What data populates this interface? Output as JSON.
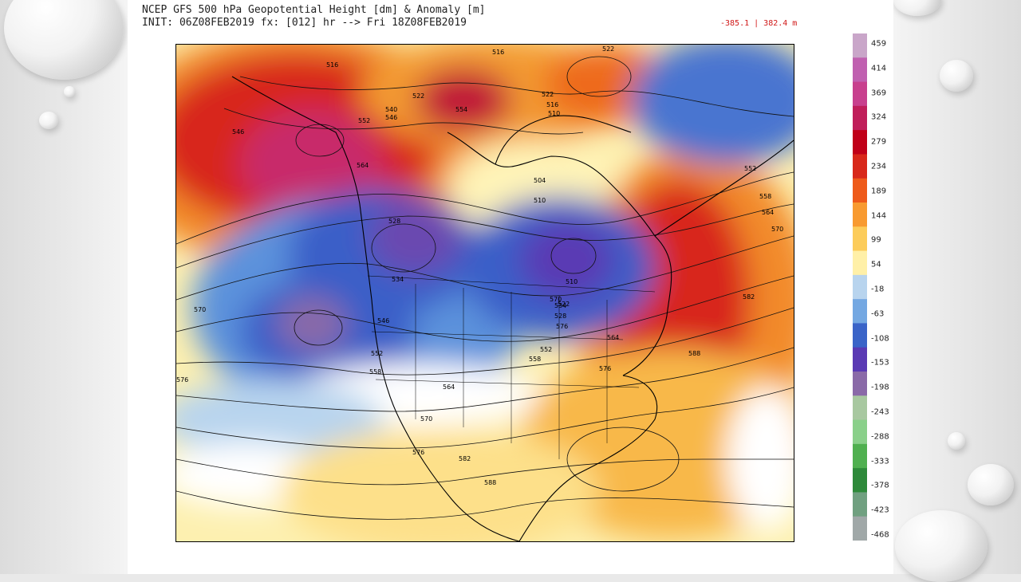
{
  "header": {
    "title_line1": "NCEP GFS 500 hPa Geopotential Height [dm] & Anomaly [m]",
    "title_line2": "INIT: 06Z08FEB2019 fx: [012] hr --> Fri 18Z08FEB2019",
    "minmax": "-385.1 | 382.4 m"
  },
  "colorbar": {
    "ticks": [
      "459",
      "414",
      "369",
      "324",
      "279",
      "234",
      "189",
      "144",
      "99",
      "54",
      "-18",
      "-63",
      "-108",
      "-153",
      "-198",
      "-243",
      "-288",
      "-333",
      "-378",
      "-423",
      "-468"
    ],
    "colors": [
      "#c9a6c9",
      "#c060b0",
      "#c8408e",
      "#c01e5a",
      "#c00018",
      "#d8281a",
      "#ee5a1a",
      "#f89a30",
      "#fccc5a",
      "#fff0a8",
      "#b8d4ee",
      "#74a8e2",
      "#3a64c8",
      "#5a3ab4",
      "#8a6aa8",
      "#a8c8a0",
      "#8ad08a",
      "#50b050",
      "#2e8a3a",
      "#70a080",
      "#a0a8a8"
    ]
  },
  "map_labels": [
    "516",
    "516",
    "522",
    "522",
    "522",
    "540",
    "546",
    "546",
    "552",
    "554",
    "564",
    "516",
    "510",
    "528",
    "534",
    "534",
    "510",
    "510",
    "504",
    "522",
    "528",
    "546",
    "552",
    "552",
    "558",
    "558",
    "564",
    "564",
    "570",
    "570",
    "570",
    "576",
    "576",
    "576",
    "582",
    "582",
    "588",
    "588",
    "552",
    "558",
    "564",
    "570",
    "576"
  ]
}
